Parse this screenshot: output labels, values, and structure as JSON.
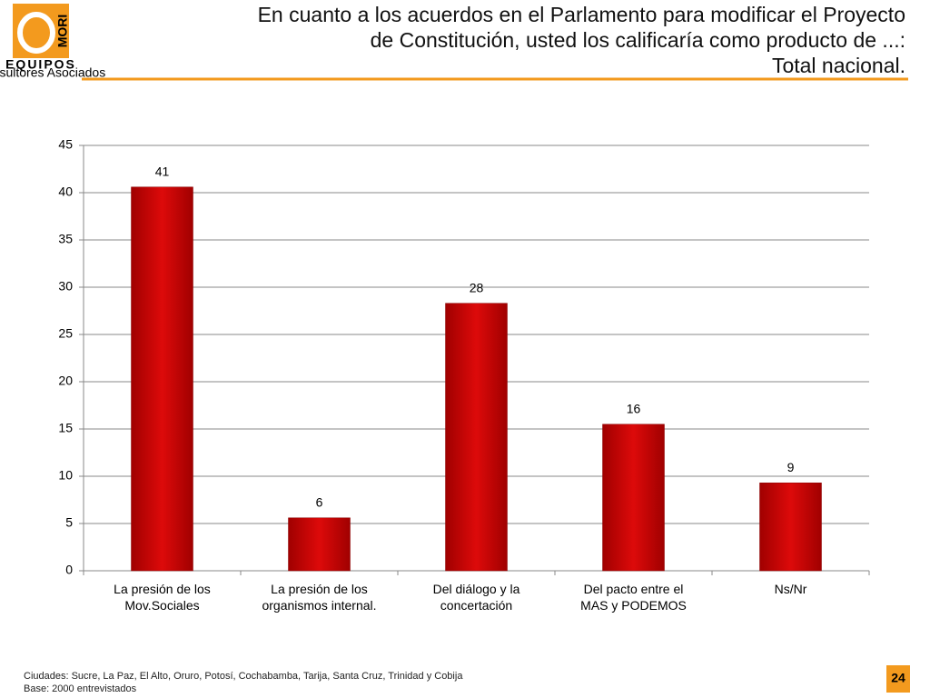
{
  "logo": {
    "brand": "MORI",
    "name": "EQUIPOS",
    "tagline": "Consultores Asociados"
  },
  "chart_data": {
    "type": "bar",
    "title": [
      "En cuanto a los acuerdos en el Parlamento para modificar el Proyecto",
      "de Constitución, usted los calificaría como producto de ...:",
      "Total nacional."
    ],
    "categories": [
      "La presión de los\nMov.Sociales",
      "La presión de los\norganismos internal.",
      "Del diálogo y la\nconcertación",
      "Del pacto entre el\nMAS y PODEMOS",
      "Ns/Nr"
    ],
    "values": [
      40.6,
      5.6,
      28.3,
      15.5,
      9.3
    ],
    "value_labels": [
      "41",
      "6",
      "28",
      "16",
      "9"
    ],
    "color": "#cc0000",
    "ylim": [
      0,
      45
    ],
    "yticks": [
      0,
      5,
      10,
      15,
      20,
      25,
      30,
      35,
      40,
      45
    ],
    "grid": true
  },
  "footer": {
    "notes": [
      "Ciudades: Sucre, La Paz, El Alto, Oruro, Potosí, Cochabamba, Tarija, Santa Cruz, Trinidad y Cobija",
      "Base: 2000 entrevistados"
    ],
    "page": "24"
  }
}
